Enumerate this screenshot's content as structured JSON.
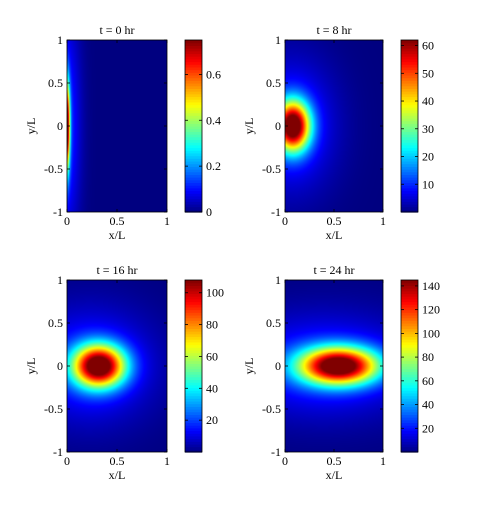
{
  "chart_data": [
    {
      "type": "heatmap",
      "title": "t = 0 hr",
      "xlabel": "x/L",
      "ylabel": "y/L",
      "xlim": [
        0,
        1
      ],
      "ylim": [
        -1,
        1
      ],
      "x_ticks": [
        "0",
        "0.5",
        "1"
      ],
      "y_ticks": [
        "-1",
        "-0.5",
        "0",
        "0.5",
        "1"
      ],
      "colorbar": {
        "range": [
          0,
          0.75
        ],
        "ticks": [
          "0",
          "0.2",
          "0.4",
          "0.6"
        ],
        "colormap": "jet"
      },
      "peak": {
        "x": 0.0,
        "y": 0.0,
        "value": 0.75
      },
      "spread": {
        "x": 0.02,
        "y": 0.35
      }
    },
    {
      "type": "heatmap",
      "title": "t = 8 hr",
      "xlabel": "x/L",
      "ylabel": "y/L",
      "xlim": [
        0,
        1
      ],
      "ylim": [
        -1,
        1
      ],
      "x_ticks": [
        "0",
        "0.5",
        "1"
      ],
      "y_ticks": [
        "-1",
        "-0.5",
        "0",
        "0.5",
        "1"
      ],
      "colorbar": {
        "range": [
          0,
          62
        ],
        "ticks": [
          "10",
          "20",
          "30",
          "40",
          "50",
          "60"
        ],
        "colormap": "jet"
      },
      "peak": {
        "x": 0.08,
        "y": 0.0,
        "value": 62
      },
      "spread": {
        "x": 0.12,
        "y": 0.2
      }
    },
    {
      "type": "heatmap",
      "title": "t = 16 hr",
      "xlabel": "x/L",
      "ylabel": "y/L",
      "xlim": [
        0,
        1
      ],
      "ylim": [
        -1,
        1
      ],
      "x_ticks": [
        "0",
        "0.5",
        "1"
      ],
      "y_ticks": [
        "-1",
        "-0.5",
        "0",
        "0.5",
        "1"
      ],
      "colorbar": {
        "range": [
          0,
          108
        ],
        "ticks": [
          "20",
          "40",
          "60",
          "80",
          "100"
        ],
        "colormap": "jet"
      },
      "peak": {
        "x": 0.32,
        "y": 0.0,
        "value": 108
      },
      "spread": {
        "x": 0.18,
        "y": 0.17
      }
    },
    {
      "type": "heatmap",
      "title": "t = 24 hr",
      "xlabel": "x/L",
      "ylabel": "y/L",
      "xlim": [
        0,
        1
      ],
      "ylim": [
        -1,
        1
      ],
      "x_ticks": [
        "0",
        "0.5",
        "1"
      ],
      "y_ticks": [
        "-1",
        "-0.5",
        "0",
        "0.5",
        "1"
      ],
      "colorbar": {
        "range": [
          0,
          145
        ],
        "ticks": [
          "20",
          "40",
          "60",
          "80",
          "100",
          "120",
          "140"
        ],
        "colormap": "jet"
      },
      "peak": {
        "x": 0.55,
        "y": 0.0,
        "value": 145
      },
      "spread": {
        "x": 0.28,
        "y": 0.15
      }
    }
  ]
}
